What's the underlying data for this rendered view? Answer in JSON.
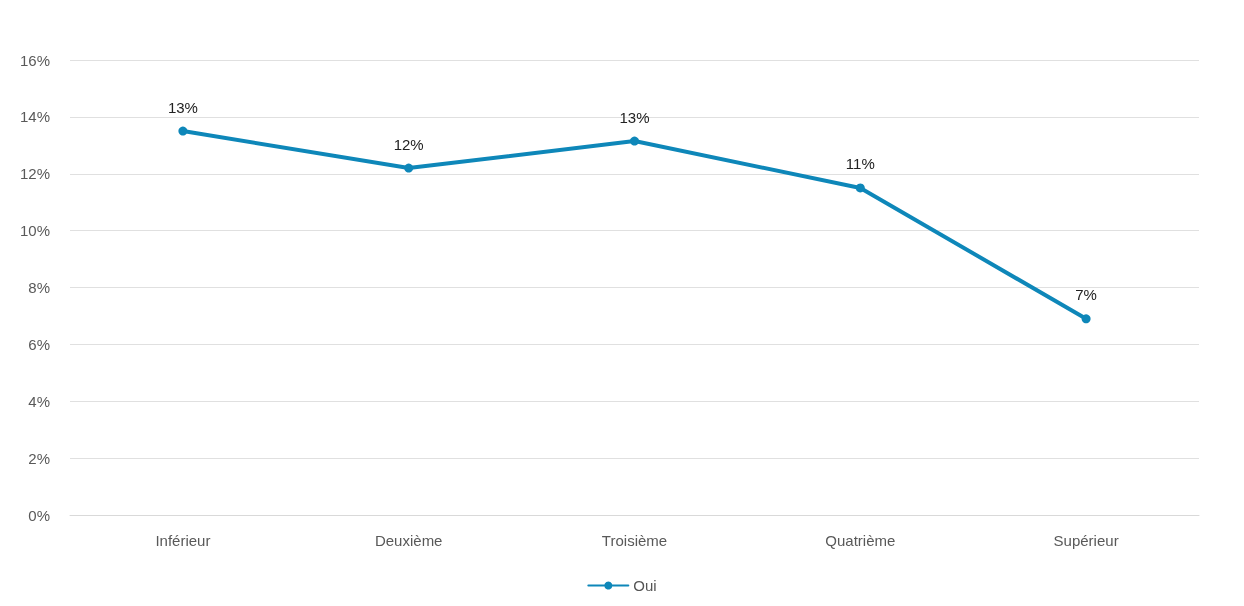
{
  "chart_data": {
    "type": "line",
    "categories": [
      "Inférieur",
      "Deuxième",
      "Troisième",
      "Quatrième",
      "Supérieur"
    ],
    "series": [
      {
        "name": "Oui",
        "color": "#0e87b9",
        "values": [
          13.5,
          12.2,
          13.15,
          11.5,
          6.9
        ],
        "value_labels": [
          "13%",
          "12%",
          "13%",
          "11%",
          "7%"
        ]
      }
    ],
    "ylim": [
      0,
      16
    ],
    "yticks": [
      {
        "value": 0,
        "label": "0%"
      },
      {
        "value": 2,
        "label": "2%"
      },
      {
        "value": 4,
        "label": "4%"
      },
      {
        "value": 6,
        "label": "6%"
      },
      {
        "value": 8,
        "label": "8%"
      },
      {
        "value": 10,
        "label": "10%"
      },
      {
        "value": 12,
        "label": "12%"
      },
      {
        "value": 14,
        "label": "14%"
      },
      {
        "value": 16,
        "label": "16%"
      }
    ],
    "grid": "y",
    "legend": "bottom",
    "marker": "circle",
    "line_style": "solid"
  }
}
